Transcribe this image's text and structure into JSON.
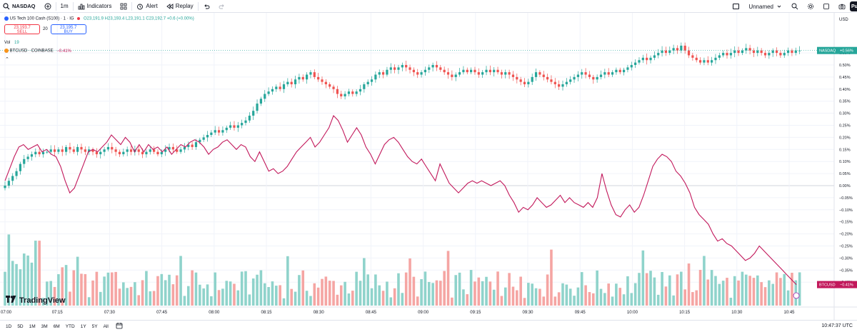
{
  "toolbar": {
    "symbol": "NASDAQ",
    "interval": "1m",
    "indicators": "Indicators",
    "alert": "Alert",
    "replay": "Replay",
    "layout_name": "Unnamed",
    "publish": "Pu"
  },
  "legend": {
    "main_title": "US Tech 100 Cash (S100) · 1 · IG",
    "ohlc": "O23,191.9 H23,193.4 L23,191.1 C23,192.7 +0.6 (+0.00%)",
    "sell_price": "23,193.7",
    "sell_label": "SELL",
    "spread": "20",
    "buy_price": "23,195.7",
    "buy_label": "BUY",
    "vol_label": "Vol",
    "vol_value": "19",
    "compare_label": "BTCUSD · COINBASE",
    "compare_value": "−0.41%"
  },
  "axis_currency": "USD",
  "logo_text": "TradingView",
  "colors": {
    "up": "#26a69a",
    "down": "#ef5350",
    "vol_up": "#8fd3cb",
    "vol_down": "#f5a5a3",
    "compare_line": "#c2185b",
    "grid": "#f0f3fa"
  },
  "bottombar": {
    "ranges": [
      "1D",
      "5D",
      "1M",
      "3M",
      "6M",
      "YTD",
      "1Y",
      "5Y",
      "All"
    ],
    "clock": "10:47:37 UTC"
  },
  "chart_data": {
    "type": "candlestick",
    "percent_axis": {
      "ticks": [
        "0.55%",
        "0.50%",
        "0.45%",
        "0.40%",
        "0.35%",
        "0.30%",
        "0.25%",
        "0.20%",
        "0.15%",
        "0.10%",
        "0.05%",
        "0.00%",
        "−0.05%",
        "−0.10%",
        "−0.15%",
        "−0.20%",
        "−0.25%",
        "−0.30%",
        "−0.35%",
        "−0.40%"
      ],
      "range": [
        -0.45,
        0.58
      ]
    },
    "time_axis": {
      "ticks": [
        "07:00",
        "07:15",
        "07:30",
        "07:45",
        "08:00",
        "08:15",
        "08:30",
        "08:45",
        "09:00",
        "09:15",
        "09:30",
        "09:45",
        "10:00",
        "10:15",
        "10:30",
        "10:45"
      ],
      "start_minute": 0,
      "minutes_per_tick": 15
    },
    "last_values": {
      "nasdaq_label": "NASDAQ",
      "nasdaq_pct": "+0.56%",
      "nasdaq_value": 0.56,
      "btc_label": "BTCUSD",
      "btc_pct": "−0.41%",
      "btc_value": -0.41
    },
    "nasdaq_closes_pct": [
      0.0,
      0.02,
      0.04,
      0.06,
      0.09,
      0.11,
      0.12,
      0.13,
      0.14,
      0.13,
      0.14,
      0.14,
      0.15,
      0.14,
      0.15,
      0.14,
      0.16,
      0.15,
      0.14,
      0.16,
      0.15,
      0.14,
      0.15,
      0.14,
      0.13,
      0.14,
      0.15,
      0.16,
      0.15,
      0.14,
      0.13,
      0.14,
      0.15,
      0.14,
      0.15,
      0.14,
      0.13,
      0.14,
      0.15,
      0.14,
      0.13,
      0.14,
      0.15,
      0.16,
      0.15,
      0.14,
      0.15,
      0.16,
      0.17,
      0.16,
      0.18,
      0.19,
      0.2,
      0.21,
      0.22,
      0.23,
      0.22,
      0.23,
      0.24,
      0.25,
      0.24,
      0.25,
      0.26,
      0.27,
      0.29,
      0.31,
      0.34,
      0.36,
      0.38,
      0.39,
      0.4,
      0.41,
      0.4,
      0.42,
      0.43,
      0.42,
      0.44,
      0.45,
      0.44,
      0.46,
      0.47,
      0.45,
      0.44,
      0.43,
      0.42,
      0.41,
      0.4,
      0.38,
      0.37,
      0.38,
      0.39,
      0.38,
      0.39,
      0.4,
      0.42,
      0.43,
      0.44,
      0.46,
      0.47,
      0.46,
      0.48,
      0.49,
      0.48,
      0.49,
      0.5,
      0.49,
      0.48,
      0.47,
      0.46,
      0.47,
      0.48,
      0.49,
      0.5,
      0.49,
      0.48,
      0.47,
      0.46,
      0.45,
      0.46,
      0.47,
      0.48,
      0.47,
      0.48,
      0.47,
      0.46,
      0.47,
      0.48,
      0.47,
      0.48,
      0.47,
      0.46,
      0.47,
      0.46,
      0.45,
      0.44,
      0.43,
      0.42,
      0.43,
      0.45,
      0.47,
      0.46,
      0.45,
      0.44,
      0.43,
      0.42,
      0.41,
      0.42,
      0.43,
      0.44,
      0.45,
      0.46,
      0.47,
      0.46,
      0.45,
      0.44,
      0.45,
      0.46,
      0.47,
      0.46,
      0.47,
      0.48,
      0.47,
      0.48,
      0.49,
      0.5,
      0.51,
      0.52,
      0.53,
      0.52,
      0.53,
      0.54,
      0.55,
      0.56,
      0.55,
      0.56,
      0.57,
      0.56,
      0.58,
      0.56,
      0.54,
      0.53,
      0.52,
      0.51,
      0.52,
      0.51,
      0.52,
      0.53,
      0.54,
      0.55,
      0.54,
      0.55,
      0.56,
      0.55,
      0.56,
      0.57,
      0.56,
      0.55,
      0.56,
      0.55,
      0.54,
      0.55,
      0.56,
      0.55,
      0.54,
      0.55,
      0.56,
      0.55,
      0.56,
      0.56
    ],
    "btc_pct": [
      0.02,
      0.07,
      0.12,
      0.16,
      0.17,
      0.15,
      0.16,
      0.17,
      0.14,
      0.15,
      0.13,
      0.12,
      0.08,
      0.02,
      -0.03,
      -0.01,
      0.04,
      0.09,
      0.14,
      0.15,
      0.14,
      0.16,
      0.18,
      0.21,
      0.19,
      0.17,
      0.2,
      0.18,
      0.14,
      0.17,
      0.14,
      0.17,
      0.15,
      0.16,
      0.14,
      0.16,
      0.13,
      0.15,
      0.17,
      0.16,
      0.18,
      0.19,
      0.18,
      0.16,
      0.13,
      0.15,
      0.16,
      0.18,
      0.19,
      0.17,
      0.15,
      0.17,
      0.16,
      0.12,
      0.1,
      0.14,
      0.1,
      0.06,
      0.07,
      0.05,
      0.06,
      0.08,
      0.11,
      0.14,
      0.16,
      0.18,
      0.2,
      0.16,
      0.18,
      0.21,
      0.24,
      0.29,
      0.27,
      0.23,
      0.18,
      0.21,
      0.24,
      0.21,
      0.16,
      0.13,
      0.09,
      0.13,
      0.17,
      0.19,
      0.2,
      0.18,
      0.15,
      0.12,
      0.1,
      0.09,
      0.11,
      0.08,
      0.05,
      0.02,
      0.09,
      0.05,
      0.01,
      -0.01,
      -0.03,
      -0.01,
      0.01,
      0.02,
      0.01,
      0.02,
      0.01,
      0.0,
      0.01,
      0.02,
      0.0,
      -0.04,
      -0.07,
      -0.11,
      -0.09,
      -0.1,
      -0.08,
      -0.05,
      -0.07,
      -0.09,
      -0.08,
      -0.06,
      -0.04,
      -0.07,
      -0.05,
      -0.07,
      -0.08,
      -0.09,
      -0.07,
      -0.09,
      -0.05,
      0.05,
      -0.02,
      -0.08,
      -0.12,
      -0.13,
      -0.1,
      -0.08,
      -0.11,
      -0.09,
      -0.04,
      0.02,
      0.08,
      0.11,
      0.13,
      0.12,
      0.1,
      0.06,
      0.04,
      0.01,
      -0.03,
      -0.09,
      -0.12,
      -0.14,
      -0.16,
      -0.2,
      -0.23,
      -0.22,
      -0.24,
      -0.25,
      -0.27,
      -0.29,
      -0.31,
      -0.3,
      -0.28,
      -0.25,
      -0.27,
      -0.29,
      -0.31,
      -0.33,
      -0.35,
      -0.37,
      -0.39,
      -0.41
    ]
  }
}
